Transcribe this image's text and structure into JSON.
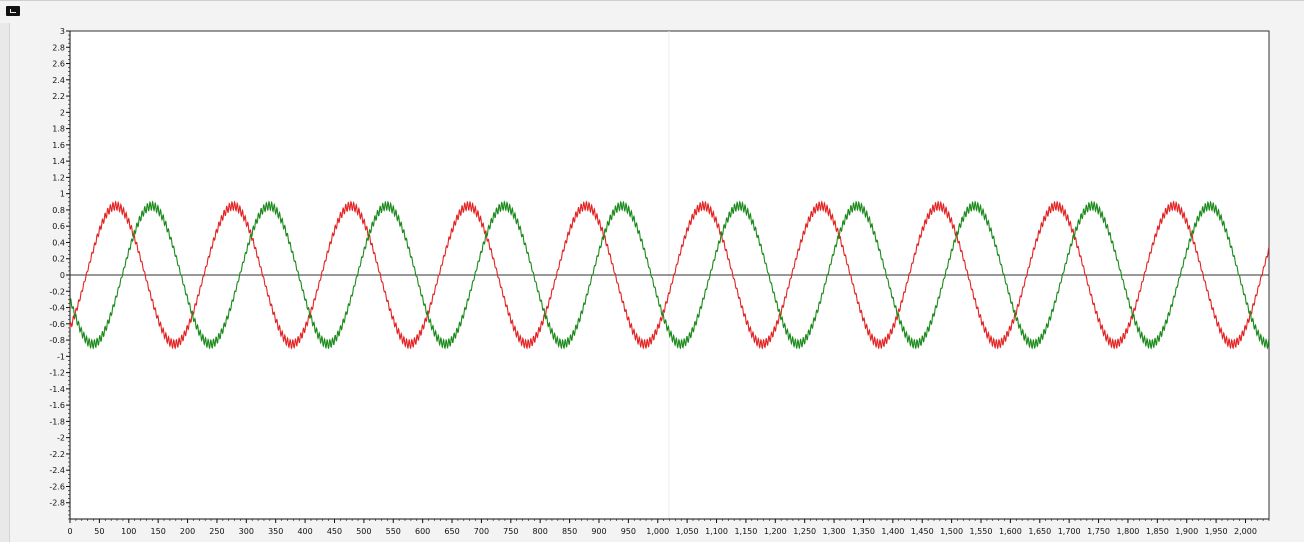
{
  "chart_data": {
    "type": "line",
    "title": "",
    "xlabel": "",
    "ylabel": "",
    "xlim": [
      0,
      2040
    ],
    "ylim": [
      -3,
      3
    ],
    "grid": false,
    "legend": "none",
    "x_ticks": [
      0,
      50,
      100,
      150,
      200,
      250,
      300,
      350,
      400,
      450,
      500,
      550,
      600,
      650,
      700,
      750,
      800,
      850,
      900,
      950,
      1000,
      1050,
      1100,
      1150,
      1200,
      1250,
      1300,
      1350,
      1400,
      1450,
      1500,
      1550,
      1600,
      1650,
      1700,
      1750,
      1800,
      1850,
      1900,
      1950,
      2000
    ],
    "x_tick_labels": [
      "0",
      "50",
      "100",
      "150",
      "200",
      "250",
      "300",
      "350",
      "400",
      "450",
      "500",
      "550",
      "600",
      "650",
      "700",
      "750",
      "800",
      "850",
      "900",
      "950",
      "1,000",
      "1,050",
      "1,100",
      "1,150",
      "1,200",
      "1,250",
      "1,300",
      "1,350",
      "1,400",
      "1,450",
      "1,500",
      "1,550",
      "1,600",
      "1,650",
      "1,700",
      "1,750",
      "1,800",
      "1,850",
      "1,900",
      "1,950",
      "2,000"
    ],
    "y_ticks": [
      3,
      2.8,
      2.6,
      2.4,
      2.2,
      2,
      1.8,
      1.6,
      1.4,
      1.2,
      1,
      0.8,
      0.6,
      0.4,
      0.2,
      0,
      -0.2,
      -0.4,
      -0.6,
      -0.8,
      -1,
      -1.2,
      -1.4,
      -1.6,
      -1.8,
      -2,
      -2.2,
      -2.4,
      -2.6,
      -2.8
    ],
    "y_tick_labels": [
      "3",
      "2.8",
      "2.6",
      "2.4",
      "2.2",
      "2",
      "1.8",
      "1.6",
      "1.4",
      "1.2",
      "1",
      "0.8",
      "0.6",
      "0.4",
      "0.2",
      "0",
      "-0.2",
      "-0.4",
      "-0.6",
      "-0.8",
      "-1",
      "-1.2",
      "-1.4",
      "-1.6",
      "-1.8",
      "-2",
      "-2.2",
      "-2.4",
      "-2.6",
      "-2.8"
    ],
    "series": [
      {
        "color": "#e32222",
        "form": "sine",
        "amplitude": 0.85,
        "period": 200,
        "phase_deg": -50,
        "ripple_amplitude": 0.05,
        "ripple_period": 4.5
      },
      {
        "color": "#1a8a1a",
        "form": "sine",
        "amplitude": 0.85,
        "period": 200,
        "phase_deg": -160,
        "ripple_amplitude": 0.05,
        "ripple_period": 4.5
      }
    ],
    "zero_line_color": "#333333"
  }
}
